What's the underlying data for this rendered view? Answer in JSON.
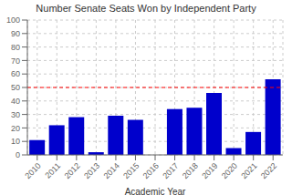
{
  "chart_data": {
    "type": "bar",
    "title": "Number Senate Seats Won by Independent Party",
    "xlabel": "Academic Year",
    "categories": [
      "2010",
      "2011",
      "2012",
      "2013",
      "2014",
      "2015",
      "2016",
      "2017",
      "2018",
      "2019",
      "2020",
      "2021",
      "2022"
    ],
    "values": [
      11,
      22,
      28,
      2,
      29,
      26,
      0,
      34,
      35,
      46,
      5,
      17,
      56
    ],
    "color": "#0000cc",
    "ylim": [
      0,
      100
    ],
    "yticks": [
      0,
      10,
      20,
      30,
      40,
      50,
      60,
      70,
      80,
      90,
      100
    ],
    "grid": true,
    "reference_line": {
      "y": 50,
      "color": "red",
      "line_style": "dashed"
    }
  }
}
